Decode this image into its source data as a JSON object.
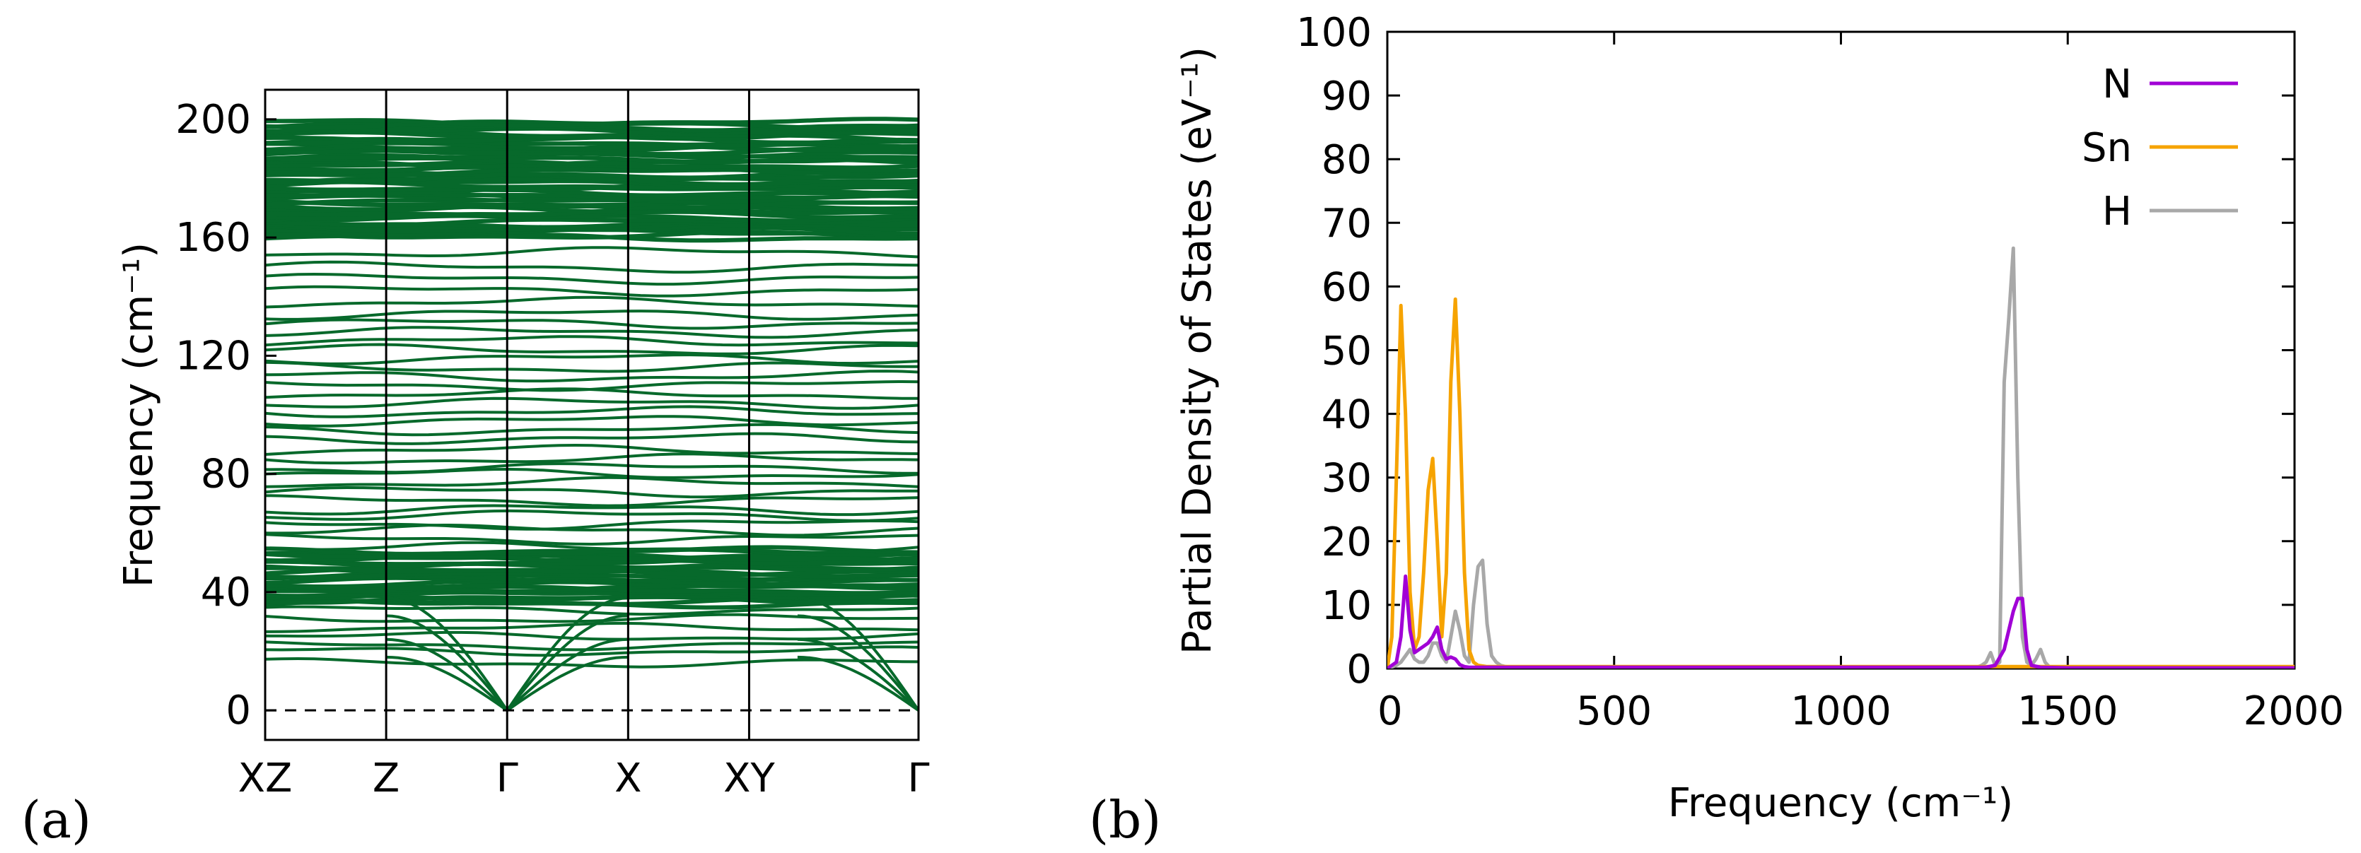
{
  "figure": {
    "panel_a_label": "(a)",
    "panel_b_label": "(b)"
  },
  "chart_data": [
    {
      "type": "line",
      "subtype": "phonon-band-structure",
      "title": "",
      "ylabel": "Frequency (cm⁻¹)",
      "ylim": [
        -10,
        210
      ],
      "yticks": [
        0,
        40,
        80,
        120,
        160,
        200
      ],
      "xtick_labels": [
        "XZ",
        "Z",
        "Γ",
        "X",
        "XY",
        "Γ"
      ],
      "xtick_positions": [
        0,
        1,
        2,
        3,
        4,
        5.4
      ],
      "band_color": "#07692b",
      "zero_line": {
        "value": 0,
        "style": "dashed"
      },
      "band_regions": [
        {
          "name": "dense-low",
          "range": [
            36,
            54
          ]
        },
        {
          "name": "dense-high",
          "range": [
            160,
            199
          ]
        }
      ],
      "acoustic_branches": {
        "gamma_points": [
          2,
          5.4
        ],
        "endpoints": [
          18,
          24,
          32,
          38
        ]
      },
      "flat_band_levels": [
        55,
        58,
        61,
        63,
        66,
        68,
        71,
        74,
        77,
        80,
        82,
        85,
        88,
        92,
        95,
        98,
        101,
        104,
        107,
        110,
        113,
        116,
        119,
        122,
        125,
        128,
        131,
        134,
        138,
        142,
        146,
        150,
        155
      ],
      "low_band_levels": [
        16,
        20,
        22,
        25,
        28,
        31,
        34
      ]
    },
    {
      "type": "line",
      "subtype": "partial-density-of-states",
      "title": "",
      "xlabel": "Frequency (cm⁻¹)",
      "ylabel": "Partial Density of States (eV⁻¹)",
      "xlim": [
        0,
        2000
      ],
      "ylim": [
        0,
        100
      ],
      "xticks": [
        0,
        500,
        1000,
        1500,
        2000
      ],
      "yticks": [
        0,
        10,
        20,
        30,
        40,
        50,
        60,
        70,
        80,
        90,
        100
      ],
      "legend_position": "top-right",
      "series": [
        {
          "name": "N",
          "color": "#a100d6",
          "x": [
            0,
            10,
            20,
            30,
            40,
            50,
            60,
            70,
            80,
            90,
            100,
            110,
            120,
            130,
            140,
            150,
            160,
            170,
            180,
            190,
            200,
            250,
            300,
            1200,
            1320,
            1340,
            1360,
            1380,
            1390,
            1400,
            1410,
            1420,
            1440,
            1500,
            2000
          ],
          "y": [
            0,
            0.5,
            1,
            5,
            14.5,
            6,
            2.5,
            3,
            3.5,
            4,
            5,
            6.5,
            3,
            1.5,
            1.8,
            1.5,
            0.6,
            0.3,
            0.2,
            0.2,
            0.2,
            0.2,
            0.2,
            0.2,
            0.2,
            0.5,
            3,
            9,
            11,
            11,
            3,
            0.5,
            0.2,
            0.1,
            0.1
          ]
        },
        {
          "name": "Sn",
          "color": "#f6a300",
          "x": [
            0,
            10,
            20,
            30,
            40,
            50,
            60,
            70,
            80,
            90,
            100,
            110,
            120,
            130,
            140,
            150,
            160,
            170,
            180,
            190,
            200,
            220,
            250,
            300,
            1000,
            1300,
            1340,
            1360,
            1380,
            1400,
            1420,
            1440,
            2000
          ],
          "y": [
            0,
            5,
            30,
            57,
            40,
            12,
            3,
            5,
            15,
            28,
            33,
            20,
            5,
            15,
            45,
            58,
            40,
            15,
            3,
            1,
            0.5,
            0.3,
            0.3,
            0.3,
            0.3,
            0.3,
            0.3,
            0.3,
            0.3,
            0.3,
            0.3,
            0.3,
            0.3
          ]
        },
        {
          "name": "H",
          "color": "#a8a8a8",
          "x": [
            0,
            20,
            30,
            40,
            50,
            60,
            70,
            80,
            90,
            100,
            110,
            120,
            130,
            140,
            150,
            160,
            170,
            180,
            190,
            200,
            210,
            220,
            230,
            240,
            250,
            260,
            280,
            300,
            1300,
            1310,
            1320,
            1330,
            1340,
            1350,
            1360,
            1370,
            1380,
            1390,
            1400,
            1410,
            1420,
            1430,
            1440,
            1450,
            1460,
            2000
          ],
          "y": [
            0,
            0.5,
            1,
            2,
            3,
            1.5,
            1,
            1,
            2,
            4,
            4,
            2,
            1,
            5,
            9,
            6,
            2,
            1,
            10,
            16,
            17,
            7,
            2,
            1,
            0.5,
            0.3,
            0.2,
            0.2,
            0.2,
            0.5,
            1,
            2.5,
            0.5,
            1,
            45,
            55,
            66,
            30,
            5,
            1,
            0.5,
            1.5,
            3,
            1,
            0.2,
            0.2
          ]
        }
      ]
    }
  ]
}
